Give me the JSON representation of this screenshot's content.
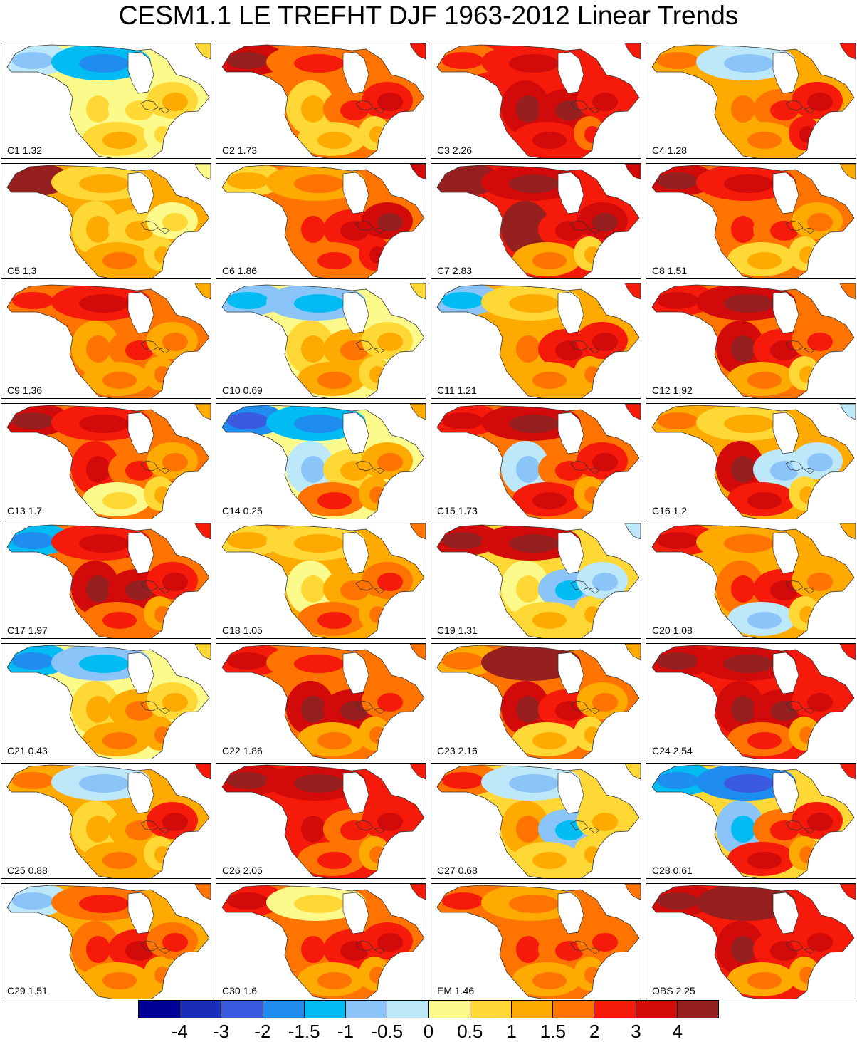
{
  "title": "CESM1.1 LE TREFHT DJF 1963-2012 Linear Trends",
  "colors": {
    "ocean": "#ffffff",
    "outline": "#333333",
    "levels": [
      "#000098",
      "#1a2db8",
      "#3a5be0",
      "#1f8cf0",
      "#00bcf2",
      "#8ac4f8",
      "#bde8fa",
      "#fdfa8c",
      "#ffd836",
      "#ffaa00",
      "#ff7300",
      "#f51a0a",
      "#d20a0a",
      "#962020"
    ]
  },
  "colorbar": {
    "tick_labels": [
      "-4",
      "-3",
      "-2",
      "-1.5",
      "-1",
      "-0.5",
      "0",
      "0.5",
      "1",
      "1.5",
      "2",
      "3",
      "4"
    ]
  },
  "panels": [
    {
      "label": "C1 1.32",
      "value": 1.32,
      "base": [
        6,
        4,
        7,
        7,
        8,
        8,
        7
      ]
    },
    {
      "label": "C2 1.73",
      "value": 1.73,
      "base": [
        12,
        10,
        8,
        10,
        11,
        8,
        8
      ]
    },
    {
      "label": "C3 2.26",
      "value": 2.26,
      "base": [
        10,
        11,
        12,
        12,
        11,
        11,
        10
      ]
    },
    {
      "label": "C4 1.28",
      "value": 1.28,
      "base": [
        9,
        6,
        9,
        10,
        11,
        9,
        11
      ]
    },
    {
      "label": "C5 1.3",
      "value": 1.3,
      "base": [
        13,
        8,
        8,
        8,
        7,
        9,
        8
      ]
    },
    {
      "label": "C6 1.86",
      "value": 1.86,
      "base": [
        8,
        9,
        10,
        11,
        12,
        10,
        11
      ]
    },
    {
      "label": "C7 2.83",
      "value": 2.83,
      "base": [
        13,
        12,
        13,
        11,
        12,
        9,
        8
      ]
    },
    {
      "label": "C8 1.51",
      "value": 1.51,
      "base": [
        12,
        11,
        10,
        10,
        9,
        8,
        8
      ]
    },
    {
      "label": "C9 1.36",
      "value": 1.36,
      "base": [
        10,
        11,
        9,
        10,
        9,
        9,
        9
      ]
    },
    {
      "label": "C10 0.69",
      "value": 0.69,
      "base": [
        5,
        5,
        8,
        9,
        8,
        9,
        8
      ]
    },
    {
      "label": "C11 1.21",
      "value": 1.21,
      "base": [
        5,
        8,
        9,
        11,
        11,
        9,
        9
      ]
    },
    {
      "label": "C12 1.92",
      "value": 1.92,
      "base": [
        11,
        12,
        12,
        11,
        10,
        9,
        8
      ]
    },
    {
      "label": "C13 1.7",
      "value": 1.7,
      "base": [
        12,
        11,
        11,
        10,
        9,
        7,
        8
      ]
    },
    {
      "label": "C14 0.25",
      "value": 0.25,
      "base": [
        3,
        4,
        6,
        8,
        9,
        10,
        9
      ]
    },
    {
      "label": "C15 1.73",
      "value": 1.73,
      "base": [
        11,
        12,
        6,
        10,
        11,
        11,
        9
      ]
    },
    {
      "label": "C16 1.2",
      "value": 1.2,
      "base": [
        9,
        8,
        12,
        6,
        6,
        11,
        8
      ]
    },
    {
      "label": "C17 1.97",
      "value": 1.97,
      "base": [
        4,
        11,
        12,
        12,
        11,
        10,
        9
      ]
    },
    {
      "label": "C18 1.05",
      "value": 1.05,
      "base": [
        8,
        8,
        7,
        9,
        10,
        10,
        9
      ]
    },
    {
      "label": "C19 1.31",
      "value": 1.31,
      "base": [
        12,
        12,
        7,
        5,
        6,
        8,
        8
      ]
    },
    {
      "label": "C20 1.08",
      "value": 1.08,
      "base": [
        11,
        9,
        10,
        11,
        9,
        6,
        8
      ]
    },
    {
      "label": "C21 0.43",
      "value": 0.43,
      "base": [
        4,
        5,
        8,
        9,
        8,
        9,
        9
      ]
    },
    {
      "label": "C22 1.86",
      "value": 1.86,
      "base": [
        11,
        10,
        12,
        12,
        10,
        9,
        9
      ]
    },
    {
      "label": "C23 2.16",
      "value": 2.16,
      "base": [
        9,
        13,
        12,
        11,
        9,
        8,
        8
      ]
    },
    {
      "label": "C24 2.54",
      "value": 2.54,
      "base": [
        12,
        12,
        12,
        12,
        11,
        10,
        9
      ]
    },
    {
      "label": "C25 0.88",
      "value": 0.88,
      "base": [
        9,
        6,
        8,
        9,
        11,
        9,
        8
      ]
    },
    {
      "label": "C26 2.05",
      "value": 2.05,
      "base": [
        12,
        12,
        11,
        10,
        11,
        10,
        9
      ]
    },
    {
      "label": "C27 0.68",
      "value": 0.68,
      "base": [
        10,
        6,
        9,
        5,
        8,
        8,
        8
      ]
    },
    {
      "label": "C28 0.61",
      "value": 0.61,
      "base": [
        4,
        3,
        5,
        10,
        11,
        11,
        9
      ]
    },
    {
      "label": "C29 1.51",
      "value": 1.51,
      "base": [
        6,
        10,
        10,
        11,
        10,
        9,
        9
      ]
    },
    {
      "label": "C30 1.6",
      "value": 1.6,
      "base": [
        11,
        7,
        10,
        11,
        11,
        9,
        9
      ]
    },
    {
      "label": "EM 1.46",
      "value": 1.46,
      "base": [
        10,
        9,
        10,
        10,
        10,
        9,
        9
      ]
    },
    {
      "label": "OBS 2.25",
      "value": 2.25,
      "base": [
        12,
        13,
        12,
        11,
        11,
        9,
        9
      ]
    }
  ]
}
